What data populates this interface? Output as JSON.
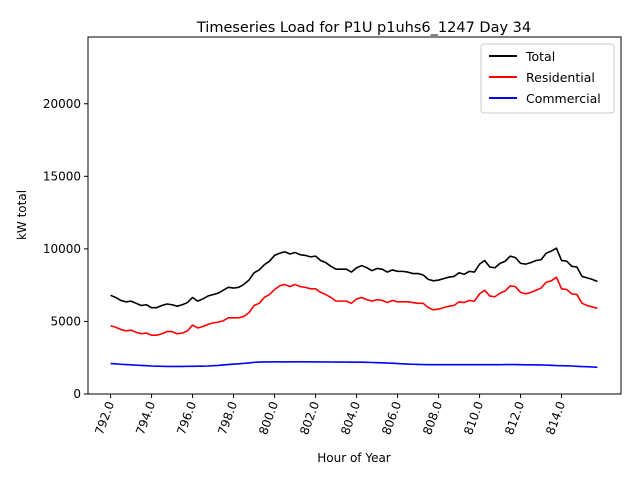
{
  "chart_data": {
    "type": "line",
    "title": "Timeseries Load for P1U p1uhs6_1247  Day 34",
    "xlabel": "Hour of Year",
    "ylabel": "kW total",
    "xlim": [
      790.9,
      816.9
    ],
    "ylim": [
      0,
      24600
    ],
    "x_ticks": [
      792.0,
      794.0,
      796.0,
      798.0,
      800.0,
      802.0,
      804.0,
      806.0,
      808.0,
      810.0,
      812.0,
      814.0
    ],
    "x_tick_labels": [
      "792.0",
      "794.0",
      "796.0",
      "798.0",
      "800.0",
      "802.0",
      "804.0",
      "806.0",
      "808.0",
      "810.0",
      "812.0",
      "814.0"
    ],
    "y_ticks": [
      0,
      5000,
      10000,
      15000,
      20000
    ],
    "y_tick_labels": [
      "0",
      "5000",
      "10000",
      "15000",
      "20000"
    ],
    "legend_position": "top-right",
    "x": [
      792.0,
      792.25,
      792.5,
      792.75,
      793.0,
      793.25,
      793.5,
      793.75,
      794.0,
      794.25,
      794.5,
      794.75,
      795.0,
      795.25,
      795.5,
      795.75,
      796.0,
      796.25,
      796.5,
      796.75,
      797.0,
      797.25,
      797.5,
      797.75,
      798.0,
      798.25,
      798.5,
      798.75,
      799.0,
      799.25,
      799.5,
      799.75,
      800.0,
      800.25,
      800.5,
      800.75,
      801.0,
      801.25,
      801.5,
      801.75,
      802.0,
      802.25,
      802.5,
      802.75,
      803.0,
      803.25,
      803.5,
      803.75,
      804.0,
      804.25,
      804.5,
      804.75,
      805.0,
      805.25,
      805.5,
      805.75,
      806.0,
      806.25,
      806.5,
      806.75,
      807.0,
      807.25,
      807.5,
      807.75,
      808.0,
      808.25,
      808.5,
      808.75,
      809.0,
      809.25,
      809.5,
      809.75,
      810.0,
      810.25,
      810.5,
      810.75,
      811.0,
      811.25,
      811.5,
      811.75,
      812.0,
      812.25,
      812.5,
      812.75,
      813.0,
      813.25,
      813.5,
      813.75,
      814.0,
      814.25,
      814.5,
      814.75,
      815.0,
      815.25,
      815.5,
      815.75
    ],
    "series": [
      {
        "name": "Total",
        "color": "#000000",
        "values": [
          6800,
          6650,
          6450,
          6350,
          6400,
          6250,
          6100,
          6150,
          5950,
          5950,
          6100,
          6200,
          6150,
          6050,
          6150,
          6300,
          6650,
          6400,
          6550,
          6750,
          6850,
          6950,
          7150,
          7350,
          7300,
          7350,
          7550,
          7850,
          8350,
          8550,
          8900,
          9150,
          9550,
          9700,
          9800,
          9650,
          9750,
          9600,
          9550,
          9450,
          9500,
          9200,
          9050,
          8800,
          8600,
          8600,
          8600,
          8400,
          8700,
          8850,
          8700,
          8500,
          8650,
          8600,
          8400,
          8550,
          8450,
          8450,
          8400,
          8300,
          8300,
          8200,
          7900,
          7800,
          7850,
          7950,
          8050,
          8100,
          8350,
          8250,
          8450,
          8400,
          8950,
          9200,
          8750,
          8700,
          9000,
          9150,
          9500,
          9400,
          9000,
          8950,
          9050,
          9200,
          9250,
          9700,
          9850,
          10050,
          9200,
          9150,
          8800,
          8750,
          8100,
          8000,
          7900,
          7750
        ]
      },
      {
        "name": "Residential",
        "color": "#ff0000",
        "values": [
          4700,
          4600,
          4450,
          4350,
          4400,
          4250,
          4150,
          4200,
          4050,
          4050,
          4150,
          4300,
          4300,
          4150,
          4200,
          4350,
          4750,
          4550,
          4650,
          4800,
          4900,
          4950,
          5050,
          5250,
          5250,
          5250,
          5350,
          5600,
          6100,
          6250,
          6650,
          6850,
          7200,
          7450,
          7550,
          7400,
          7550,
          7400,
          7350,
          7250,
          7250,
          7000,
          6850,
          6650,
          6400,
          6400,
          6400,
          6250,
          6550,
          6650,
          6500,
          6400,
          6500,
          6450,
          6300,
          6450,
          6350,
          6350,
          6350,
          6300,
          6250,
          6250,
          5950,
          5800,
          5850,
          5950,
          6050,
          6100,
          6350,
          6300,
          6450,
          6400,
          6900,
          7150,
          6750,
          6700,
          6950,
          7100,
          7450,
          7400,
          7000,
          6900,
          7000,
          7150,
          7300,
          7700,
          7800,
          8050,
          7250,
          7200,
          6900,
          6850,
          6250,
          6100,
          6000,
          5900
        ]
      },
      {
        "name": "Commercial",
        "color": "#0000ff",
        "values": [
          2100,
          2080,
          2050,
          2030,
          2010,
          1990,
          1970,
          1950,
          1930,
          1920,
          1910,
          1900,
          1900,
          1900,
          1900,
          1905,
          1910,
          1915,
          1920,
          1930,
          1950,
          1970,
          2000,
          2030,
          2060,
          2080,
          2110,
          2140,
          2180,
          2200,
          2210,
          2210,
          2220,
          2220,
          2210,
          2220,
          2220,
          2220,
          2220,
          2220,
          2210,
          2210,
          2210,
          2205,
          2200,
          2200,
          2200,
          2190,
          2190,
          2190,
          2180,
          2170,
          2160,
          2150,
          2130,
          2120,
          2100,
          2080,
          2060,
          2050,
          2040,
          2030,
          2020,
          2020,
          2020,
          2020,
          2020,
          2020,
          2020,
          2020,
          2020,
          2020,
          2020,
          2020,
          2020,
          2020,
          2020,
          2030,
          2030,
          2030,
          2020,
          2010,
          2010,
          2000,
          2000,
          1990,
          1980,
          1960,
          1950,
          1940,
          1930,
          1910,
          1890,
          1880,
          1860,
          1840
        ]
      }
    ]
  }
}
